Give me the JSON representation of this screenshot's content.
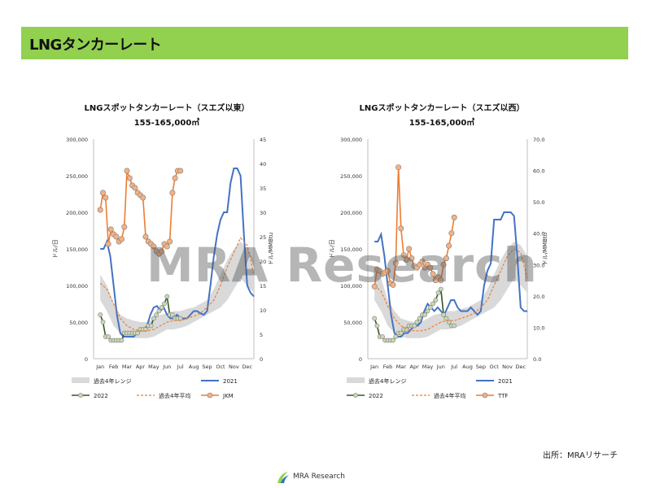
{
  "header": {
    "title": "LNGタンカーレート"
  },
  "watermark": "MRA Research",
  "source_note": "出所：MRAリサーチ",
  "footer": {
    "logo_text": "MRA Research"
  },
  "colors": {
    "header_bg": "#92d050",
    "range_band": "#d9d9d9",
    "line_2021": "#4472c4",
    "line_2022": "#375623",
    "marker_2022_fill": "#c9d8b5",
    "avg_line": "#ed7d31",
    "price_line": "#ed7d31",
    "price_marker_fill": "#f4b183"
  },
  "chart_data": [
    {
      "type": "line",
      "title": "LNGスポットタンカーレート（スエズ以東）",
      "subtitle": "155-165,000㎥",
      "categories": [
        "Jan",
        "Feb",
        "Mar",
        "Apr",
        "May",
        "Jun",
        "Jul",
        "Aug",
        "Sep",
        "Oct",
        "Nov",
        "Dec"
      ],
      "ylabel": "ドル/日",
      "y2label": "ドル/MMBtu",
      "ylim": [
        0,
        300000
      ],
      "y2lim": [
        0,
        45
      ],
      "yticks": [
        0,
        50000,
        100000,
        150000,
        200000,
        250000,
        300000
      ],
      "ytick_labels": [
        "0",
        "50,000",
        "100,000",
        "150,000",
        "200,000",
        "250,000",
        "300,000"
      ],
      "y2ticks": [
        0,
        5,
        10,
        15,
        20,
        25,
        30,
        35,
        40,
        45
      ],
      "y2tick_labels": [
        "0",
        "5",
        "10",
        "15",
        "20",
        "25",
        "30",
        "35",
        "40",
        "45"
      ],
      "range_band": {
        "name": "過去4年レンジ",
        "x": [
          1,
          1.5,
          2,
          2.5,
          3,
          3.5,
          4,
          4.5,
          5,
          5.5,
          6,
          6.5,
          7,
          7.5,
          8,
          8.5,
          9,
          9.5,
          10,
          10.5,
          11,
          11.5,
          12,
          12.5
        ],
        "lower": [
          80000,
          65000,
          45000,
          35000,
          30000,
          28000,
          28000,
          28000,
          30000,
          35000,
          40000,
          40000,
          42000,
          45000,
          50000,
          55000,
          60000,
          65000,
          70000,
          80000,
          95000,
          110000,
          100000,
          90000
        ],
        "upper": [
          115000,
          100000,
          75000,
          60000,
          55000,
          52000,
          50000,
          50000,
          55000,
          60000,
          62000,
          65000,
          65000,
          68000,
          70000,
          75000,
          80000,
          95000,
          115000,
          135000,
          150000,
          160000,
          150000,
          135000
        ]
      },
      "series": [
        {
          "name": "2021",
          "axis": "left",
          "x": [
            1,
            1.25,
            1.5,
            1.75,
            2,
            2.25,
            2.5,
            2.75,
            3,
            3.25,
            3.5,
            3.75,
            4,
            4.25,
            4.5,
            4.75,
            5,
            5.25,
            5.5,
            5.75,
            6,
            6.25,
            6.5,
            6.75,
            7,
            7.25,
            7.5,
            7.75,
            8,
            8.25,
            8.5,
            8.75,
            9,
            9.25,
            9.5,
            9.75,
            10,
            10.25,
            10.5,
            10.75,
            11,
            11.25,
            11.5,
            11.75,
            12,
            12.25,
            12.5
          ],
          "values": [
            150000,
            150000,
            160000,
            140000,
            100000,
            60000,
            35000,
            30000,
            30000,
            30000,
            30000,
            35000,
            40000,
            40000,
            45000,
            60000,
            70000,
            72000,
            65000,
            70000,
            60000,
            55000,
            55000,
            60000,
            55000,
            55000,
            55000,
            60000,
            65000,
            65000,
            62000,
            60000,
            65000,
            100000,
            140000,
            170000,
            190000,
            200000,
            200000,
            240000,
            260000,
            260000,
            250000,
            170000,
            100000,
            90000,
            85000
          ]
        },
        {
          "name": "2022",
          "axis": "left",
          "markers": true,
          "x": [
            1,
            1.2,
            1.4,
            1.6,
            1.8,
            2,
            2.2,
            2.4,
            2.6,
            2.8,
            3,
            3.2,
            3.4,
            3.6,
            3.8,
            4,
            4.2,
            4.4,
            4.6,
            4.8,
            5,
            5.2,
            5.4,
            5.6,
            5.8,
            6,
            6.2,
            6.4,
            6.6,
            6.8,
            7
          ],
          "values": [
            60000,
            50000,
            30000,
            30000,
            25000,
            25000,
            25000,
            25000,
            25000,
            35000,
            35000,
            35000,
            35000,
            35000,
            35000,
            40000,
            40000,
            40000,
            45000,
            45000,
            55000,
            60000,
            65000,
            70000,
            75000,
            85000,
            60000,
            60000,
            55000,
            55000,
            55000
          ]
        },
        {
          "name": "過去4年平均",
          "axis": "left",
          "dashed": true,
          "x": [
            1,
            1.5,
            2,
            2.5,
            3,
            3.5,
            4,
            4.5,
            5,
            5.5,
            6,
            6.5,
            7,
            7.5,
            8,
            8.5,
            9,
            9.5,
            10,
            10.5,
            11,
            11.5,
            12,
            12.5
          ],
          "values": [
            103000,
            95000,
            75000,
            55000,
            45000,
            40000,
            38000,
            38000,
            40000,
            45000,
            50000,
            52000,
            52000,
            55000,
            58000,
            62000,
            70000,
            80000,
            100000,
            125000,
            145000,
            165000,
            155000,
            115000
          ]
        },
        {
          "name": "JKM",
          "axis": "right",
          "markers": true,
          "x": [
            1,
            1.2,
            1.4,
            1.6,
            1.8,
            2,
            2.2,
            2.4,
            2.6,
            2.8,
            3,
            3.2,
            3.4,
            3.6,
            3.8,
            4,
            4.2,
            4.4,
            4.6,
            4.8,
            5,
            5.2,
            5.4,
            5.6,
            5.8,
            6,
            6.2,
            6.4,
            6.6,
            6.8,
            7
          ],
          "values": [
            30.5,
            34,
            33,
            23.5,
            26.5,
            25.5,
            25,
            24,
            24.5,
            27,
            38.5,
            37,
            35.5,
            35,
            34,
            33.5,
            33,
            25,
            24,
            23.5,
            23,
            22,
            21.5,
            22,
            23.5,
            23,
            24,
            34,
            37,
            38.5,
            38.5
          ]
        }
      ],
      "legend": [
        "過去4年レンジ",
        "2021",
        "2022",
        "過去4年平均",
        "JKM"
      ],
      "legend_position": "bottom"
    },
    {
      "type": "line",
      "title": "LNGスポットタンカーレート（スエズ以西）",
      "subtitle": "155-165,000㎥",
      "categories": [
        "Jan",
        "Feb",
        "Mar",
        "Apr",
        "May",
        "Jun",
        "Jul",
        "Aug",
        "Sep",
        "Oct",
        "Nov",
        "Dec"
      ],
      "ylabel": "ドル/日",
      "y2label": "ドル/MMBtu",
      "ylim": [
        0,
        300000
      ],
      "y2lim": [
        0,
        70
      ],
      "yticks": [
        0,
        50000,
        100000,
        150000,
        200000,
        250000,
        300000
      ],
      "ytick_labels": [
        "0",
        "50,000",
        "100,000",
        "150,000",
        "200,000",
        "250,000",
        "300,000"
      ],
      "y2ticks": [
        0,
        10,
        20,
        30,
        40,
        50,
        60,
        70
      ],
      "y2tick_labels": [
        "0.0",
        "10.0",
        "20.0",
        "30.0",
        "40.0",
        "50.0",
        "60.0",
        "70.0"
      ],
      "range_band": {
        "name": "過去4年レンジ",
        "x": [
          1,
          1.5,
          2,
          2.5,
          3,
          3.5,
          4,
          4.5,
          5,
          5.5,
          6,
          6.5,
          7,
          7.5,
          8,
          8.5,
          9,
          9.5,
          10,
          10.5,
          11,
          11.5,
          12,
          12.5
        ],
        "lower": [
          80000,
          65000,
          45000,
          35000,
          30000,
          28000,
          28000,
          28000,
          30000,
          35000,
          40000,
          40000,
          42000,
          45000,
          50000,
          55000,
          60000,
          65000,
          70000,
          80000,
          95000,
          110000,
          100000,
          90000
        ],
        "upper": [
          125000,
          110000,
          80000,
          65000,
          55000,
          52000,
          50000,
          50000,
          55000,
          60000,
          62000,
          65000,
          65000,
          68000,
          70000,
          75000,
          80000,
          95000,
          115000,
          135000,
          150000,
          160000,
          155000,
          140000
        ]
      },
      "series": [
        {
          "name": "2021",
          "axis": "left",
          "x": [
            1,
            1.25,
            1.5,
            1.75,
            2,
            2.25,
            2.5,
            2.75,
            3,
            3.25,
            3.5,
            3.75,
            4,
            4.25,
            4.5,
            4.75,
            5,
            5.25,
            5.5,
            5.75,
            6,
            6.25,
            6.5,
            6.75,
            7,
            7.25,
            7.5,
            7.75,
            8,
            8.25,
            8.5,
            8.75,
            9,
            9.25,
            9.5,
            9.75,
            10,
            10.25,
            10.5,
            10.75,
            11,
            11.25,
            11.5,
            11.75,
            12,
            12.25,
            12.5
          ],
          "values": [
            160000,
            160000,
            170000,
            140000,
            100000,
            60000,
            35000,
            30000,
            30000,
            35000,
            35000,
            40000,
            45000,
            45000,
            50000,
            65000,
            75000,
            70000,
            65000,
            70000,
            65000,
            60000,
            70000,
            80000,
            80000,
            70000,
            65000,
            65000,
            65000,
            70000,
            65000,
            60000,
            65000,
            100000,
            120000,
            130000,
            190000,
            190000,
            190000,
            200000,
            200000,
            200000,
            195000,
            140000,
            70000,
            65000,
            65000
          ]
        },
        {
          "name": "2022",
          "axis": "left",
          "markers": true,
          "x": [
            1,
            1.2,
            1.4,
            1.6,
            1.8,
            2,
            2.2,
            2.4,
            2.6,
            2.8,
            3,
            3.2,
            3.4,
            3.6,
            3.8,
            4,
            4.2,
            4.4,
            4.6,
            4.8,
            5,
            5.2,
            5.4,
            5.6,
            5.8,
            6,
            6.2,
            6.4,
            6.6,
            6.8,
            7
          ],
          "values": [
            55000,
            45000,
            30000,
            30000,
            25000,
            25000,
            25000,
            25000,
            30000,
            35000,
            35000,
            40000,
            40000,
            45000,
            45000,
            45000,
            50000,
            55000,
            60000,
            60000,
            65000,
            70000,
            75000,
            80000,
            90000,
            95000,
            60000,
            55000,
            50000,
            45000,
            45000
          ]
        },
        {
          "name": "過去4年平均",
          "axis": "left",
          "dashed": true,
          "x": [
            1,
            1.5,
            2,
            2.5,
            3,
            3.5,
            4,
            4.5,
            5,
            5.5,
            6,
            6.5,
            7,
            7.5,
            8,
            8.5,
            9,
            9.5,
            10,
            10.5,
            11,
            11.5,
            12,
            12.5
          ],
          "values": [
            100000,
            92000,
            72000,
            55000,
            45000,
            40000,
            38000,
            38000,
            40000,
            45000,
            50000,
            52000,
            52000,
            55000,
            58000,
            62000,
            70000,
            80000,
            100000,
            120000,
            140000,
            150000,
            145000,
            110000
          ]
        },
        {
          "name": "TTF",
          "axis": "right",
          "markers": true,
          "x": [
            1,
            1.2,
            1.4,
            1.6,
            1.8,
            2,
            2.2,
            2.4,
            2.6,
            2.8,
            3,
            3.2,
            3.4,
            3.6,
            3.8,
            4,
            4.2,
            4.4,
            4.6,
            4.8,
            5,
            5.2,
            5.4,
            5.6,
            5.8,
            6,
            6.2,
            6.4,
            6.6,
            6.8,
            7
          ],
          "values": [
            23,
            28.5,
            28,
            27,
            27.5,
            28,
            24,
            23.5,
            30.5,
            61,
            41.5,
            33,
            31.5,
            35,
            32,
            29.5,
            29,
            30,
            31,
            29,
            30,
            29,
            27,
            25,
            26,
            25,
            30,
            32,
            36,
            40,
            45
          ]
        }
      ],
      "legend": [
        "過去4年レンジ",
        "2021",
        "2022",
        "過去4年平均",
        "TTF"
      ],
      "legend_position": "bottom"
    }
  ]
}
